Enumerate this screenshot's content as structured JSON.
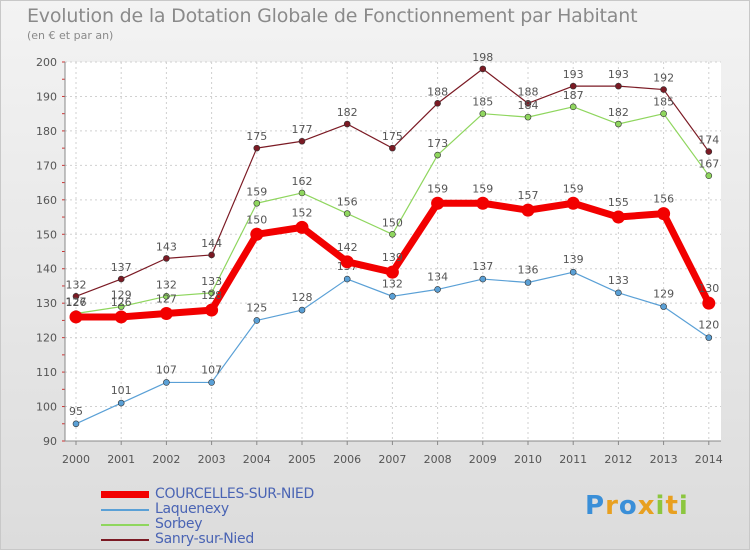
{
  "chart_data": {
    "type": "line",
    "title": "Evolution de la Dotation Globale de Fonctionnement par Habitant",
    "subtitle": "(en € et par an)",
    "xlabel": "",
    "ylabel": "",
    "ylim": [
      90,
      200
    ],
    "yticks": [
      90,
      100,
      110,
      120,
      130,
      140,
      150,
      160,
      170,
      180,
      190,
      200
    ],
    "grid": true,
    "legend_position": "bottom-left",
    "x": [
      "2000",
      "2001",
      "2002",
      "2003",
      "2004",
      "2005",
      "2006",
      "2007",
      "2008",
      "2009",
      "2010",
      "2011",
      "2012",
      "2013",
      "2014"
    ],
    "series": [
      {
        "name": "Sanry-sur-Nied",
        "color": "#7b1a24",
        "values": [
          132,
          137,
          143,
          144,
          175,
          177,
          182,
          175,
          188,
          198,
          188,
          193,
          193,
          192,
          174
        ]
      },
      {
        "name": "Sorbey",
        "color": "#8fd65e",
        "values": [
          127,
          129,
          132,
          133,
          159,
          162,
          156,
          150,
          173,
          185,
          184,
          187,
          182,
          185,
          167
        ]
      },
      {
        "name": "Laquenexy",
        "color": "#5aa0d6",
        "values": [
          95,
          101,
          107,
          107,
          125,
          128,
          137,
          132,
          134,
          137,
          136,
          139,
          133,
          129,
          120
        ]
      },
      {
        "name": "COURCELLES-SUR-NIED",
        "color": "#f20000",
        "values": [
          126,
          126,
          127,
          128,
          150,
          152,
          142,
          139,
          159,
          159,
          157,
          159,
          155,
          156,
          130
        ]
      }
    ]
  },
  "legend": [
    {
      "label": "COURCELLES-SUR-NIED",
      "color": "#f20000",
      "thick": true
    },
    {
      "label": "Laquenexy",
      "color": "#5aa0d6",
      "thick": false
    },
    {
      "label": "Sorbey",
      "color": "#8fd65e",
      "thick": false
    },
    {
      "label": "Sanry-sur-Nied",
      "color": "#7b1a24",
      "thick": false
    }
  ],
  "brand": {
    "letters": [
      "P",
      "r",
      "o",
      "x",
      "i",
      "t",
      "i"
    ],
    "colors": [
      "#3a8fd8",
      "#e8a020",
      "#3a8fd8",
      "#e8a020",
      "#8cc63f",
      "#e8a020",
      "#8cc63f"
    ]
  }
}
